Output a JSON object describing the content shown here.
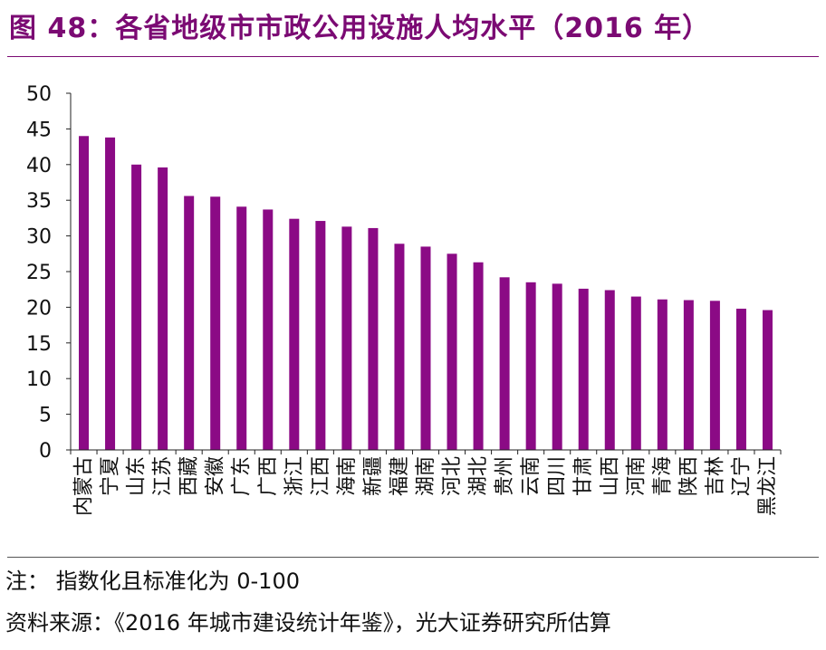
{
  "figure": {
    "title": "图 48：各省地级市市政公用设施人均水平（2016 年）",
    "note": "注：  指数化且标准化为 0-100",
    "source": "资料来源：《2016 年城市建设统计年鉴》，光大证券研究所估算"
  },
  "colors": {
    "bar": "#8b0a85",
    "title": "#7b0a73"
  },
  "chart_data": {
    "type": "bar",
    "title": "",
    "xlabel": "",
    "ylabel": "",
    "ylim": [
      0,
      50
    ],
    "yticks": [
      0,
      5,
      10,
      15,
      20,
      25,
      30,
      35,
      40,
      45,
      50
    ],
    "grid": false,
    "legend": "none",
    "categories": [
      "内蒙古",
      "宁夏",
      "山东",
      "江苏",
      "西藏",
      "安徽",
      "广东",
      "广西",
      "浙江",
      "江西",
      "海南",
      "新疆",
      "福建",
      "湖南",
      "河北",
      "湖北",
      "贵州",
      "云南",
      "四川",
      "甘肃",
      "山西",
      "河南",
      "青海",
      "陕西",
      "吉林",
      "辽宁",
      "黑龙江"
    ],
    "values": [
      44.0,
      43.8,
      40.0,
      39.6,
      35.6,
      35.5,
      34.1,
      33.7,
      32.4,
      32.1,
      31.3,
      31.1,
      28.9,
      28.5,
      27.5,
      26.3,
      24.2,
      23.5,
      23.3,
      22.6,
      22.4,
      21.5,
      21.1,
      21.0,
      20.9,
      19.8,
      19.6
    ]
  }
}
